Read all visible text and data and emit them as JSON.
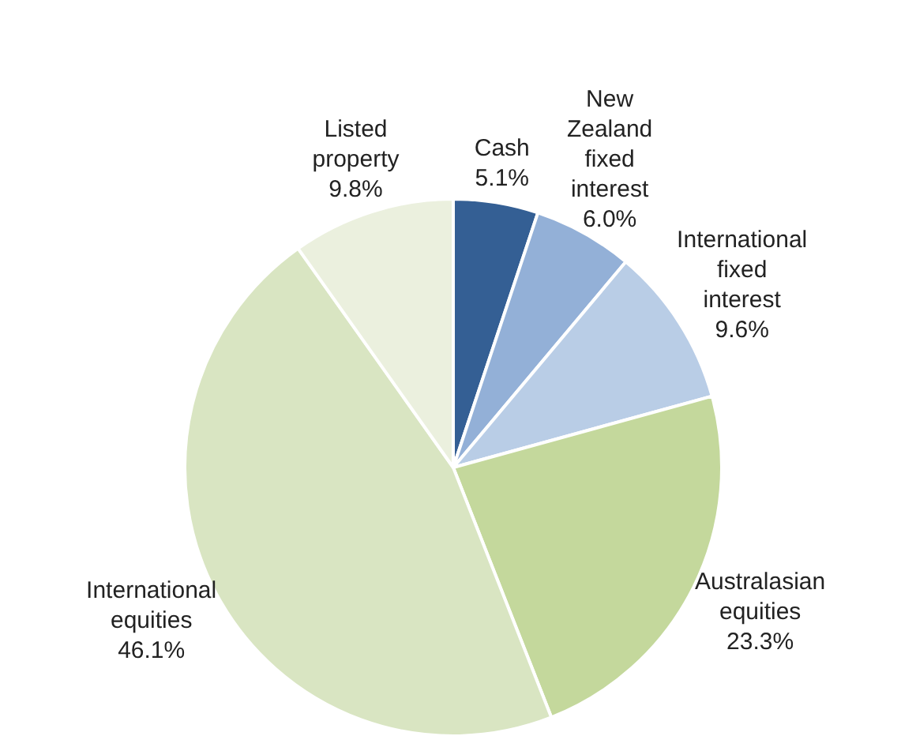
{
  "chart_data": {
    "type": "pie",
    "categories": [
      "Cash",
      "New Zealand fixed interest",
      "International fixed interest",
      "Australasian equities",
      "International equities",
      "Listed property"
    ],
    "values": [
      5.1,
      6.0,
      9.6,
      23.3,
      46.1,
      9.8
    ],
    "value_labels": [
      "5.1%",
      "6.0%",
      "9.6%",
      "23.3%",
      "46.1%",
      "9.8%"
    ],
    "colors": [
      "#345f94",
      "#93b0d7",
      "#b9cde6",
      "#c4d89c",
      "#d9e5c2",
      "#ebf0de"
    ],
    "legend": false
  }
}
